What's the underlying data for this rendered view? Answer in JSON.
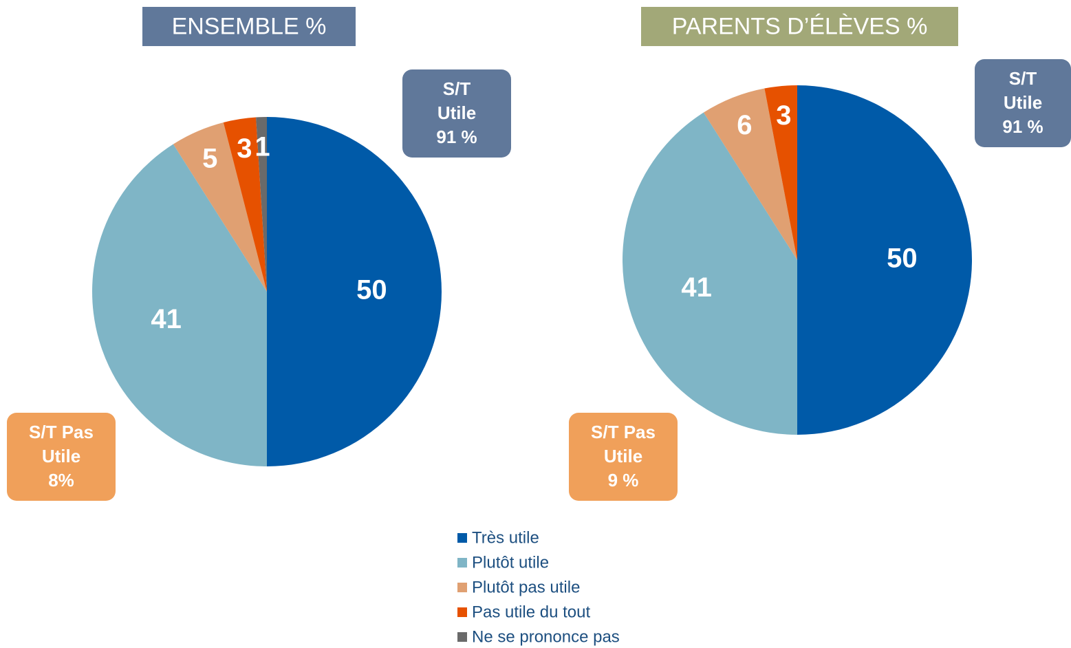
{
  "chart_data": [
    {
      "type": "pie",
      "title": "ENSEMBLE %",
      "title_color": "#60789a",
      "categories": [
        "Très utile",
        "Plutôt utile",
        "Plutôt pas utile",
        "Pas utile du tout",
        "Ne se prononce pas"
      ],
      "values": [
        50,
        41,
        5,
        3,
        1
      ],
      "colors": [
        "#005aa8",
        "#7fb5c6",
        "#e0a072",
        "#e65100",
        "#6a6a6a"
      ],
      "annotations": [
        {
          "lines": [
            "S/T",
            "Utile",
            "91 %"
          ],
          "color": "#60789a"
        },
        {
          "lines": [
            "S/T Pas",
            "Utile",
            "8%"
          ],
          "color": "#f0a05a"
        }
      ]
    },
    {
      "type": "pie",
      "title": "PARENTS D’ÉLÈVES %",
      "title_color": "#a2a878",
      "categories": [
        "Très utile",
        "Plutôt utile",
        "Plutôt pas utile",
        "Pas utile du tout"
      ],
      "values": [
        50,
        41,
        6,
        3
      ],
      "colors": [
        "#005aa8",
        "#7fb5c6",
        "#e0a072",
        "#e65100"
      ],
      "annotations": [
        {
          "lines": [
            "S/T",
            "Utile",
            "91 %"
          ],
          "color": "#60789a"
        },
        {
          "lines": [
            "S/T  Pas",
            "Utile",
            "9 %"
          ],
          "color": "#f0a05a"
        }
      ]
    }
  ]
}
